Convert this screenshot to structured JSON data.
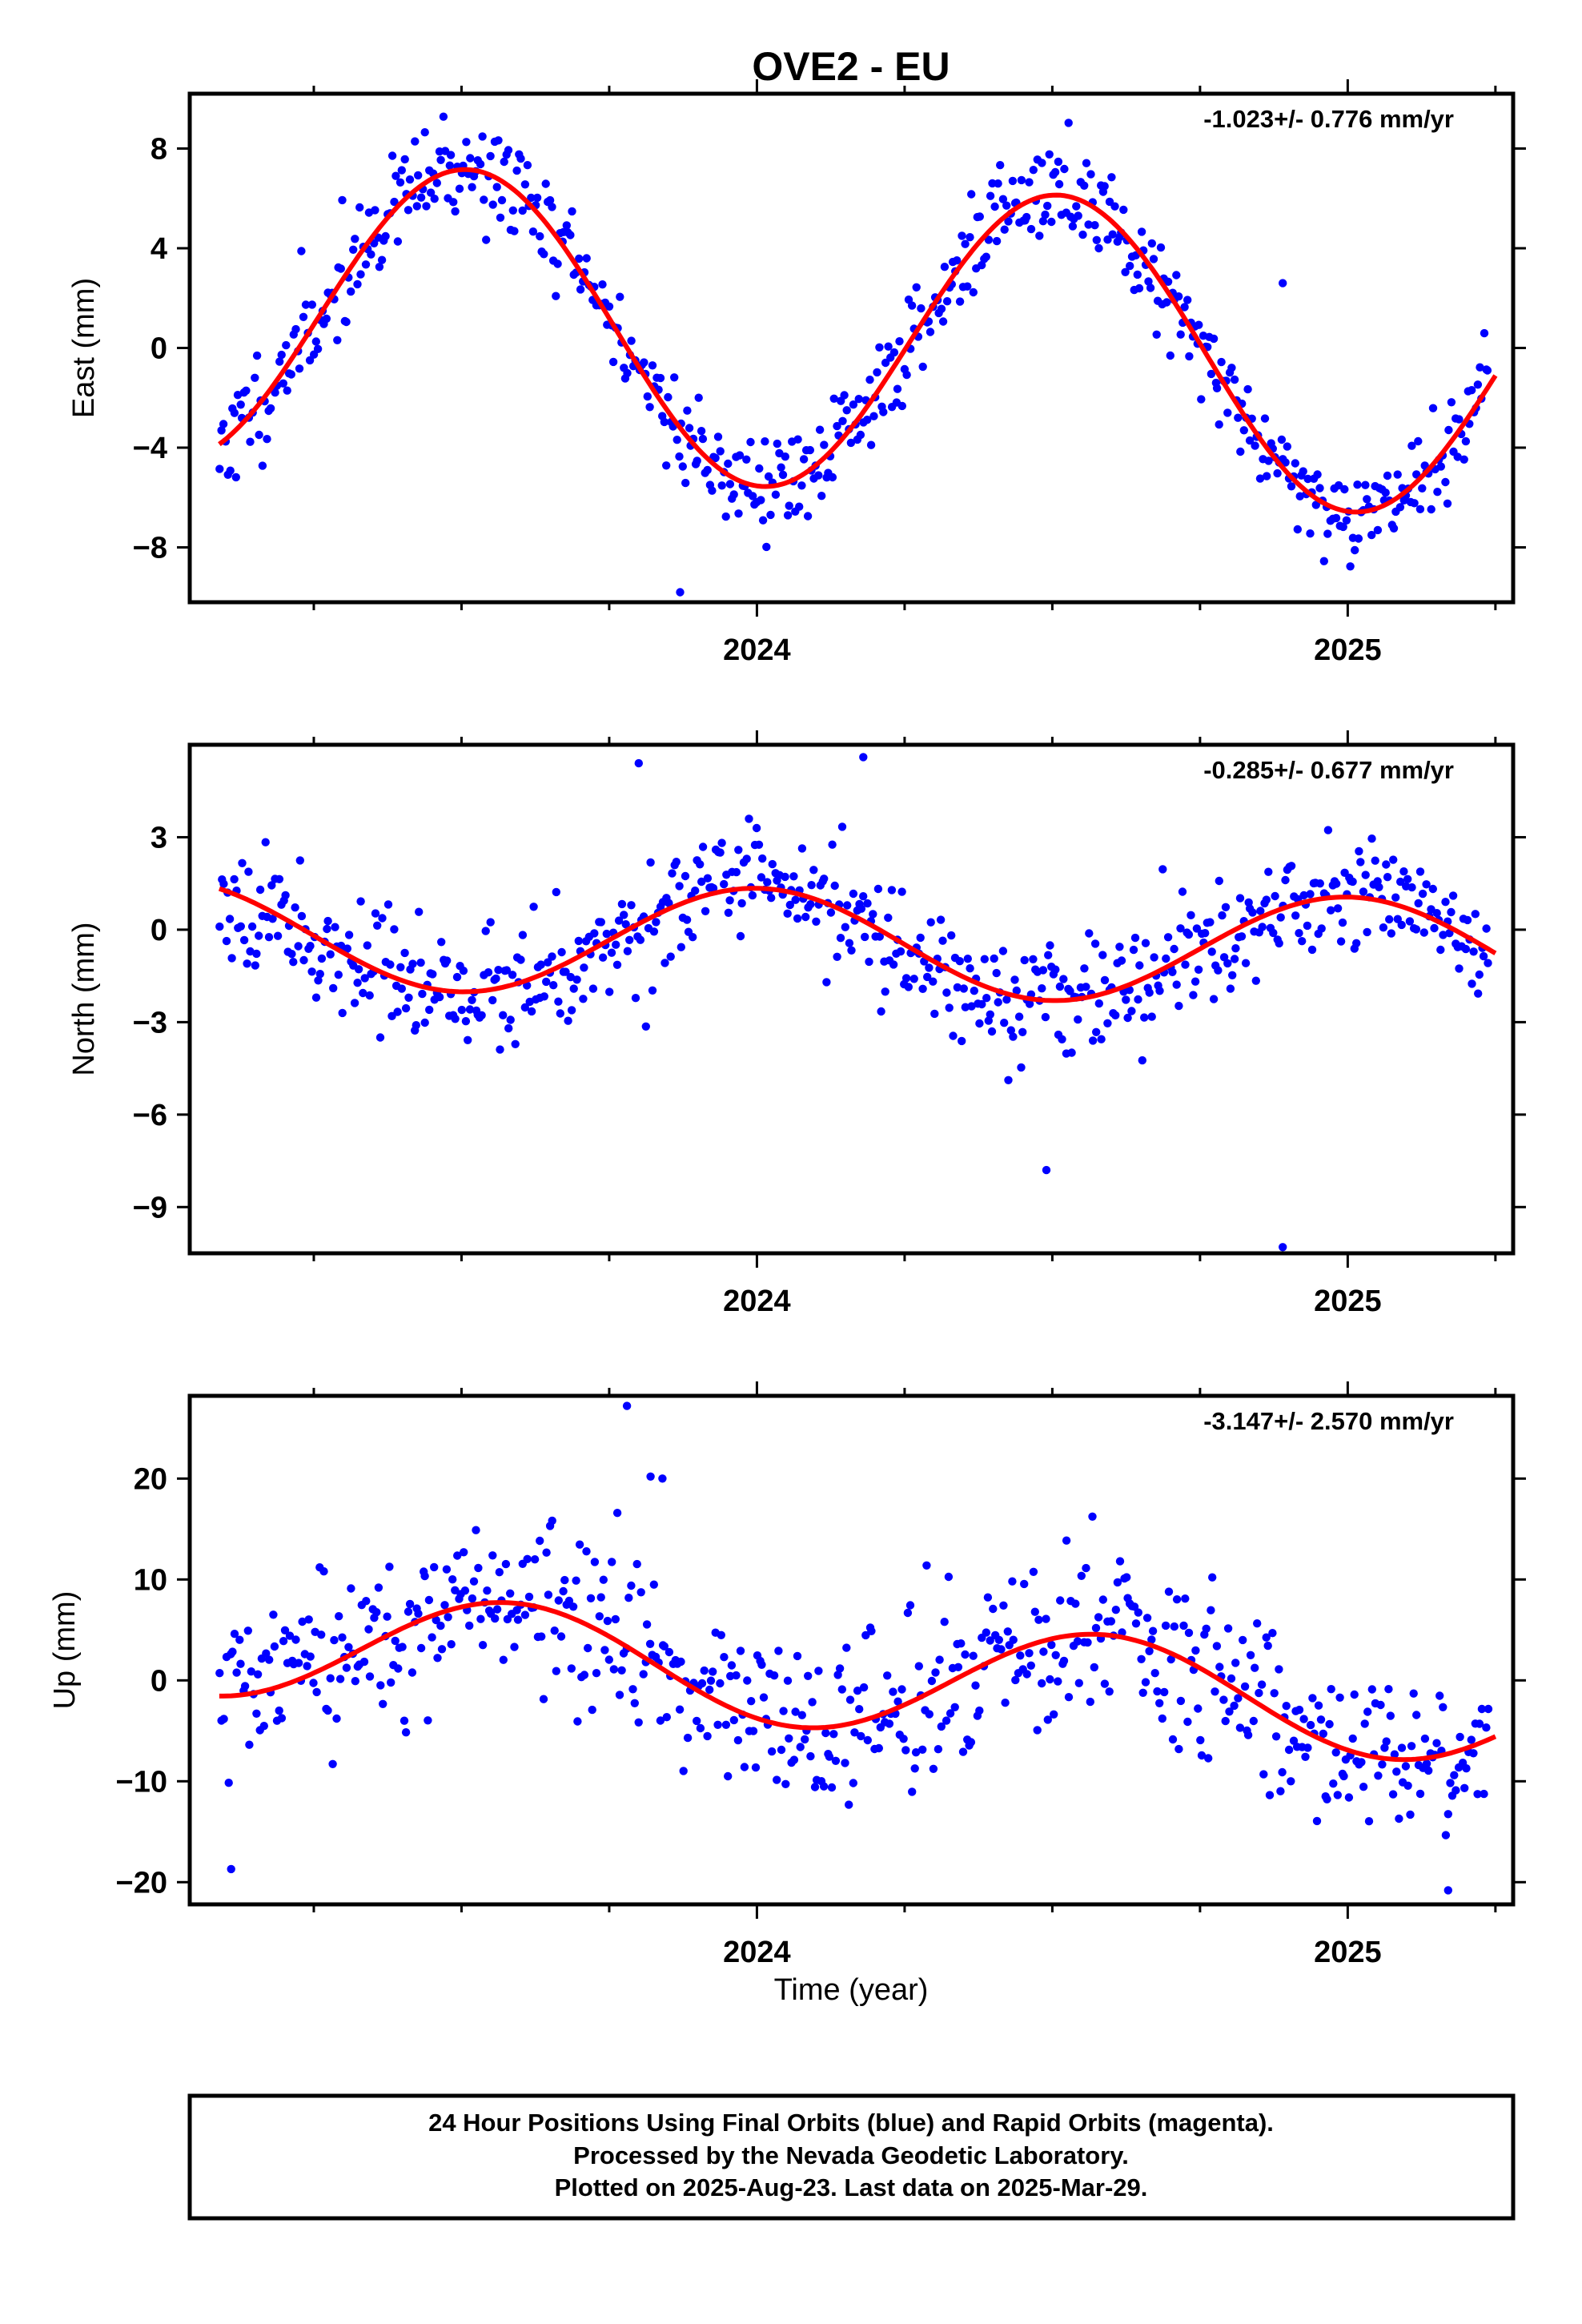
{
  "title": "OVE2 - EU",
  "colors": {
    "final_orbits": "#0000ff",
    "fit_curve": "#ff0000",
    "frame": "#000000"
  },
  "chart_data": [
    {
      "type": "scatter",
      "ylabel": "East (mm)",
      "xlabel": "",
      "rate": "-1.023+/- 0.776 mm/yr",
      "xlim": [
        2023.04,
        2025.28
      ],
      "ylim": [
        -10.2,
        10.2
      ],
      "yticks": [
        "8",
        "4",
        "0",
        "−4",
        "−8"
      ],
      "ytick_values": [
        8,
        4,
        0,
        -4,
        -8
      ],
      "xticks": [
        "2024",
        "2025"
      ],
      "xtick_values": [
        2024,
        2025
      ],
      "fit": {
        "mean": 0.4,
        "trend": -1.023,
        "amplitude": 6.1,
        "peak": 2023.51,
        "start": 2023.09,
        "end": 2025.25
      },
      "scatter": {
        "count": 620,
        "noise": 1.05,
        "seed": 11,
        "start": 2023.09,
        "end": 2025.24
      },
      "outliers": [
        [
          2023.87,
          -9.8
        ],
        [
          2024.89,
          2.6
        ]
      ]
    },
    {
      "type": "scatter",
      "ylabel": "North (mm)",
      "xlabel": "",
      "rate": "-0.285+/- 0.677 mm/yr",
      "xlim": [
        2023.04,
        2025.28
      ],
      "ylim": [
        -10.5,
        6.0
      ],
      "yticks": [
        "3",
        "0",
        "−3",
        "−6",
        "−9"
      ],
      "ytick_values": [
        3,
        0,
        -3,
        -6,
        -9
      ],
      "xticks": [
        "2024",
        "2025"
      ],
      "xtick_values": [
        2024,
        2025
      ],
      "fit": {
        "mean": -0.45,
        "trend": -0.285,
        "amplitude": 1.75,
        "peak": 2024.0,
        "start": 2023.09,
        "end": 2025.25
      },
      "scatter": {
        "count": 620,
        "noise": 0.95,
        "seed": 23,
        "start": 2023.09,
        "end": 2025.24
      },
      "outliers": [
        [
          2024.49,
          -7.8
        ],
        [
          2024.89,
          -10.3
        ],
        [
          2024.18,
          5.6
        ],
        [
          2023.8,
          5.4
        ]
      ]
    },
    {
      "type": "scatter",
      "ylabel": "Up (mm)",
      "xlabel": "Time (year)",
      "rate": "-3.147+/- 2.570 mm/yr",
      "xlim": [
        2023.04,
        2025.28
      ],
      "ylim": [
        -22.2,
        28.2
      ],
      "yticks": [
        "20",
        "10",
        "0",
        "−10",
        "−20"
      ],
      "ytick_values": [
        20,
        10,
        0,
        -10,
        -20
      ],
      "xticks": [
        "2024",
        "2025"
      ],
      "xtick_values": [
        2024,
        2025
      ],
      "fit": {
        "mean": 0.5,
        "trend": -3.147,
        "amplitude": 5.4,
        "peak": 2023.58,
        "start": 2023.09,
        "end": 2025.25
      },
      "scatter": {
        "count": 600,
        "noise": 4.2,
        "seed": 37,
        "start": 2023.09,
        "end": 2025.24
      },
      "outliers": [
        [
          2023.78,
          27.2
        ],
        [
          2023.82,
          20.2
        ],
        [
          2023.84,
          20.0
        ],
        [
          2023.11,
          -18.7
        ],
        [
          2025.17,
          -20.8
        ]
      ]
    }
  ],
  "footer": {
    "line1": "24 Hour Positions Using Final Orbits (blue) and Rapid Orbits (magenta).",
    "line2": "Processed by the Nevada Geodetic Laboratory.",
    "line3": "Plotted on 2025-Aug-23. Last data on 2025-Mar-29."
  }
}
